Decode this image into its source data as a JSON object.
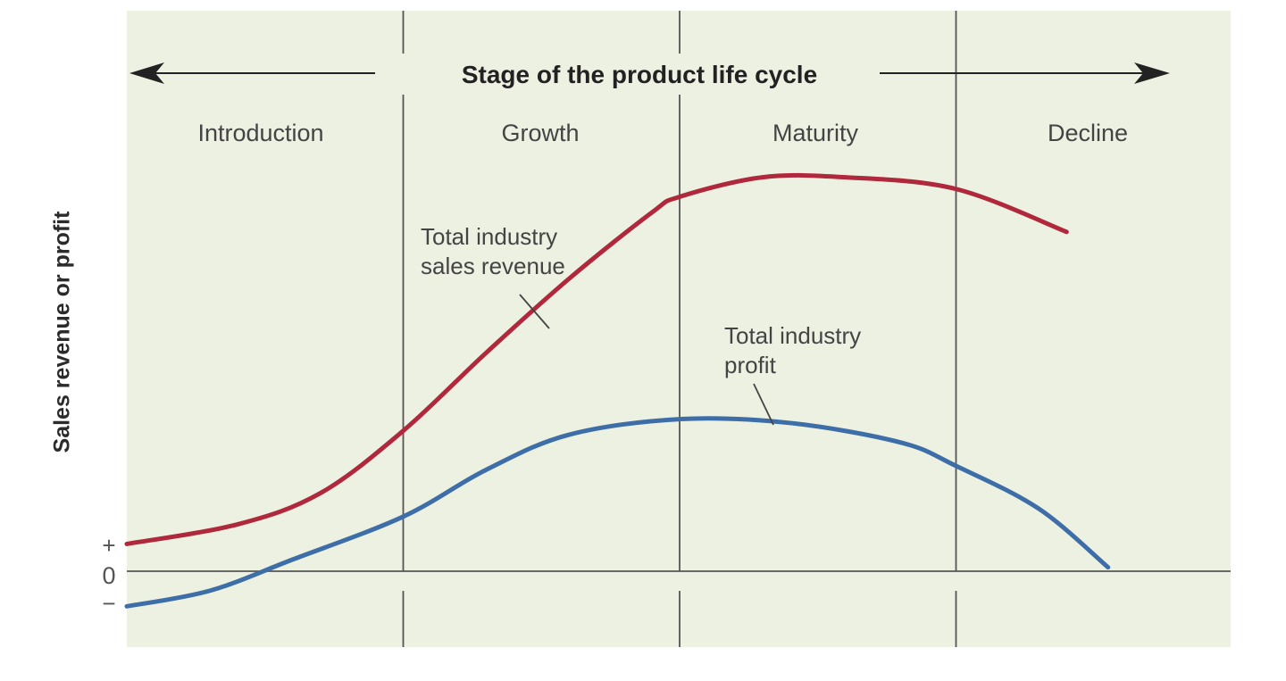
{
  "chart_data": {
    "type": "line",
    "title": "Stage of the product life cycle",
    "ylabel": "Sales revenue or profit",
    "stages": [
      "Introduction",
      "Growth",
      "Maturity",
      "Decline"
    ],
    "y_ticks": [
      "+",
      "0",
      "−"
    ],
    "x_range": [
      0,
      4
    ],
    "y_range": [
      -1,
      10
    ],
    "grid": false,
    "colors": {
      "background": "#edf1e2",
      "sales": "#b0283c",
      "profit": "#3e6ea8",
      "lines": "#555555"
    },
    "series": [
      {
        "name": "Total industry sales revenue",
        "annotation_lines": [
          "Total industry",
          "sales revenue"
        ],
        "color": "#b0283c",
        "x": [
          0,
          0.4,
          0.7,
          1.0,
          1.3,
          1.6,
          1.9,
          2.0,
          2.3,
          2.6,
          3.0,
          3.4
        ],
        "y": [
          0.7,
          1.2,
          2.0,
          3.6,
          5.6,
          7.5,
          9.2,
          9.6,
          10.1,
          10.1,
          9.8,
          8.7
        ]
      },
      {
        "name": "Total industry profit",
        "annotation_lines": [
          "Total industry",
          "profit"
        ],
        "color": "#3e6ea8",
        "x": [
          0,
          0.3,
          0.6,
          1.0,
          1.3,
          1.6,
          2.0,
          2.4,
          2.8,
          3.0,
          3.3,
          3.55
        ],
        "y": [
          -0.9,
          -0.5,
          0.3,
          1.4,
          2.6,
          3.5,
          3.9,
          3.8,
          3.3,
          2.7,
          1.6,
          0.1
        ]
      }
    ]
  }
}
